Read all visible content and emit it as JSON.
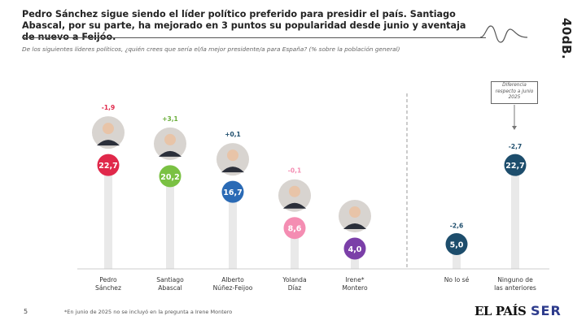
{
  "header": {
    "title": "Pedro Sánchez sigue siendo el líder político preferido para presidir el país. Santiago Abascal, por su parte, ha mejorado en 3 puntos su popularidad desde junio y aventaja de nuevo a Feijóo.",
    "question": "De los siguientes líderes políticos, ¿quién crees que sería el/la mejor presidente/a para España? (% sobre la población general)",
    "brand": "40dB."
  },
  "note": "Diferencia respecto a junio 2025",
  "footer": {
    "page": "5",
    "footnote": "*En junio de 2025 no se incluyó en la pregunta a Irene Montero",
    "logo1": "EL PAÍS",
    "logo2": "SER"
  },
  "chart_data": {
    "type": "lollipop",
    "categories": [
      "Pedro Sánchez",
      "Santiago Abascal",
      "Alberto Núñez-Feijoo",
      "Yolanda Díaz",
      "Irene* Montero",
      "No lo sé",
      "Ninguno de las anteriores"
    ],
    "values": [
      22.7,
      20.2,
      16.7,
      8.6,
      4.0,
      5.0,
      22.7
    ],
    "value_labels": [
      "22,7",
      "20,2",
      "16,7",
      "8,6",
      "4,0",
      "5,0",
      "22,7"
    ],
    "changes": [
      "-1,9",
      "+3,1",
      "+0,1",
      "-0,1",
      "",
      "-2,6",
      "-2,7"
    ],
    "colors": [
      "#e0284a",
      "#7ac143",
      "#2a6ab5",
      "#f48db2",
      "#7b3fa8",
      "#1d4d6c",
      "#1d4d6c"
    ],
    "change_colors": [
      "#e0284a",
      "#6aae3a",
      "#1d4d6c",
      "#f48db2",
      "#1d4d6c",
      "#1d4d6c",
      "#1d4d6c"
    ],
    "has_photo": [
      true,
      true,
      true,
      true,
      true,
      false,
      false
    ]
  }
}
